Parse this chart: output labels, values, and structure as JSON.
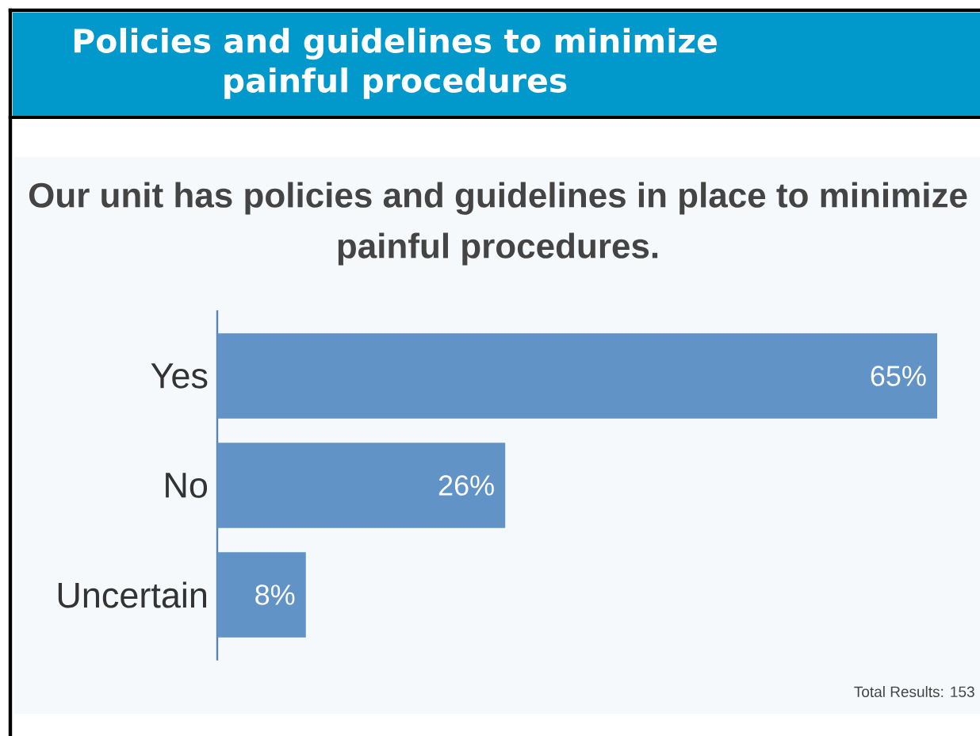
{
  "chart_data": {
    "type": "bar",
    "orientation": "horizontal",
    "title": "Policies and guidelines to minimize painful procedures",
    "subtitle": "Our unit has policies and guidelines in place to minimize painful procedures.",
    "categories": [
      "Yes",
      "No",
      "Uncertain"
    ],
    "values": [
      65,
      26,
      8
    ],
    "value_labels": [
      "65%",
      "26%",
      "8%"
    ],
    "color": "#6193c6",
    "annotations": [
      "Total Results: 153"
    ]
  }
}
